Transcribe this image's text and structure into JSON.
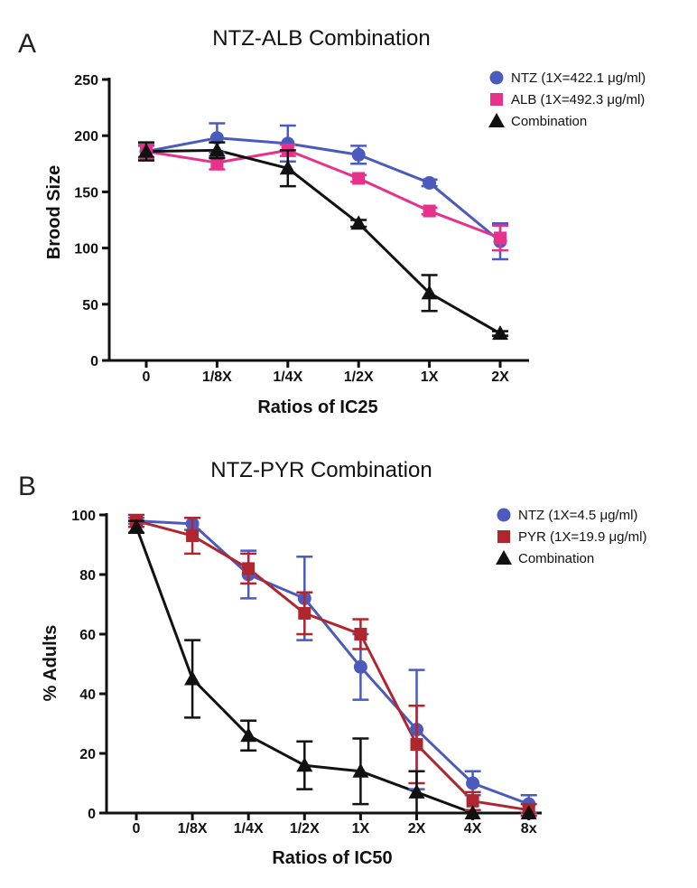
{
  "chart_data": [
    {
      "panel_label": "A",
      "type": "line",
      "title": "NTZ-ALB Combination",
      "xlabel": "Ratios of IC25",
      "ylabel": "Brood Size",
      "categories": [
        "0",
        "1/8X",
        "1/4X",
        "1/2X",
        "1X",
        "2X"
      ],
      "ylim": [
        0,
        250
      ],
      "yticks": [
        0,
        50,
        100,
        150,
        200,
        250
      ],
      "legend_position": "top-right",
      "series": [
        {
          "name": "NTZ (1X=422.1 μg/ml)",
          "color": "#4a5bbd",
          "marker": "circle",
          "values": [
            186,
            198,
            193,
            183,
            158,
            106
          ],
          "errors": [
            5,
            13,
            16,
            8,
            3,
            16
          ]
        },
        {
          "name": "ALB (1X=492.3 μg/ml)",
          "color": "#e8318a",
          "marker": "square",
          "values": [
            186,
            176,
            187,
            162,
            133,
            109
          ],
          "errors": [
            6,
            6,
            5,
            3,
            3,
            11
          ]
        },
        {
          "name": "Combination",
          "color": "#111111",
          "marker": "triangle",
          "values": [
            186,
            187,
            171,
            122,
            60,
            24
          ],
          "errors": [
            8,
            7,
            16,
            3,
            16,
            2
          ]
        }
      ]
    },
    {
      "panel_label": "B",
      "type": "line",
      "title": "NTZ-PYR Combination",
      "xlabel": "Ratios of IC50",
      "ylabel": "% Adults",
      "categories": [
        "0",
        "1/8X",
        "1/4X",
        "1/2X",
        "1X",
        "2X",
        "4X",
        "8x"
      ],
      "ylim": [
        0,
        100
      ],
      "yticks": [
        0,
        20,
        40,
        60,
        80,
        100
      ],
      "legend_position": "top-right",
      "series": [
        {
          "name": "NTZ (1X=4.5 μg/ml)",
          "color": "#4a5bbd",
          "marker": "circle",
          "values": [
            98,
            97,
            80,
            72,
            49,
            28,
            10,
            3
          ],
          "errors": [
            1,
            2,
            8,
            14,
            11,
            20,
            4,
            3
          ]
        },
        {
          "name": "PYR (1X=19.9 μg/ml)",
          "color": "#b0262e",
          "marker": "square",
          "values": [
            98,
            93,
            82,
            67,
            60,
            23,
            4,
            1
          ],
          "errors": [
            2,
            6,
            5,
            7,
            5,
            13,
            3,
            2
          ]
        },
        {
          "name": "Combination",
          "color": "#111111",
          "marker": "triangle",
          "values": [
            96,
            45,
            26,
            16,
            14,
            7,
            0,
            0
          ],
          "errors": [
            2,
            13,
            5,
            8,
            11,
            7,
            0,
            0
          ]
        }
      ]
    }
  ]
}
